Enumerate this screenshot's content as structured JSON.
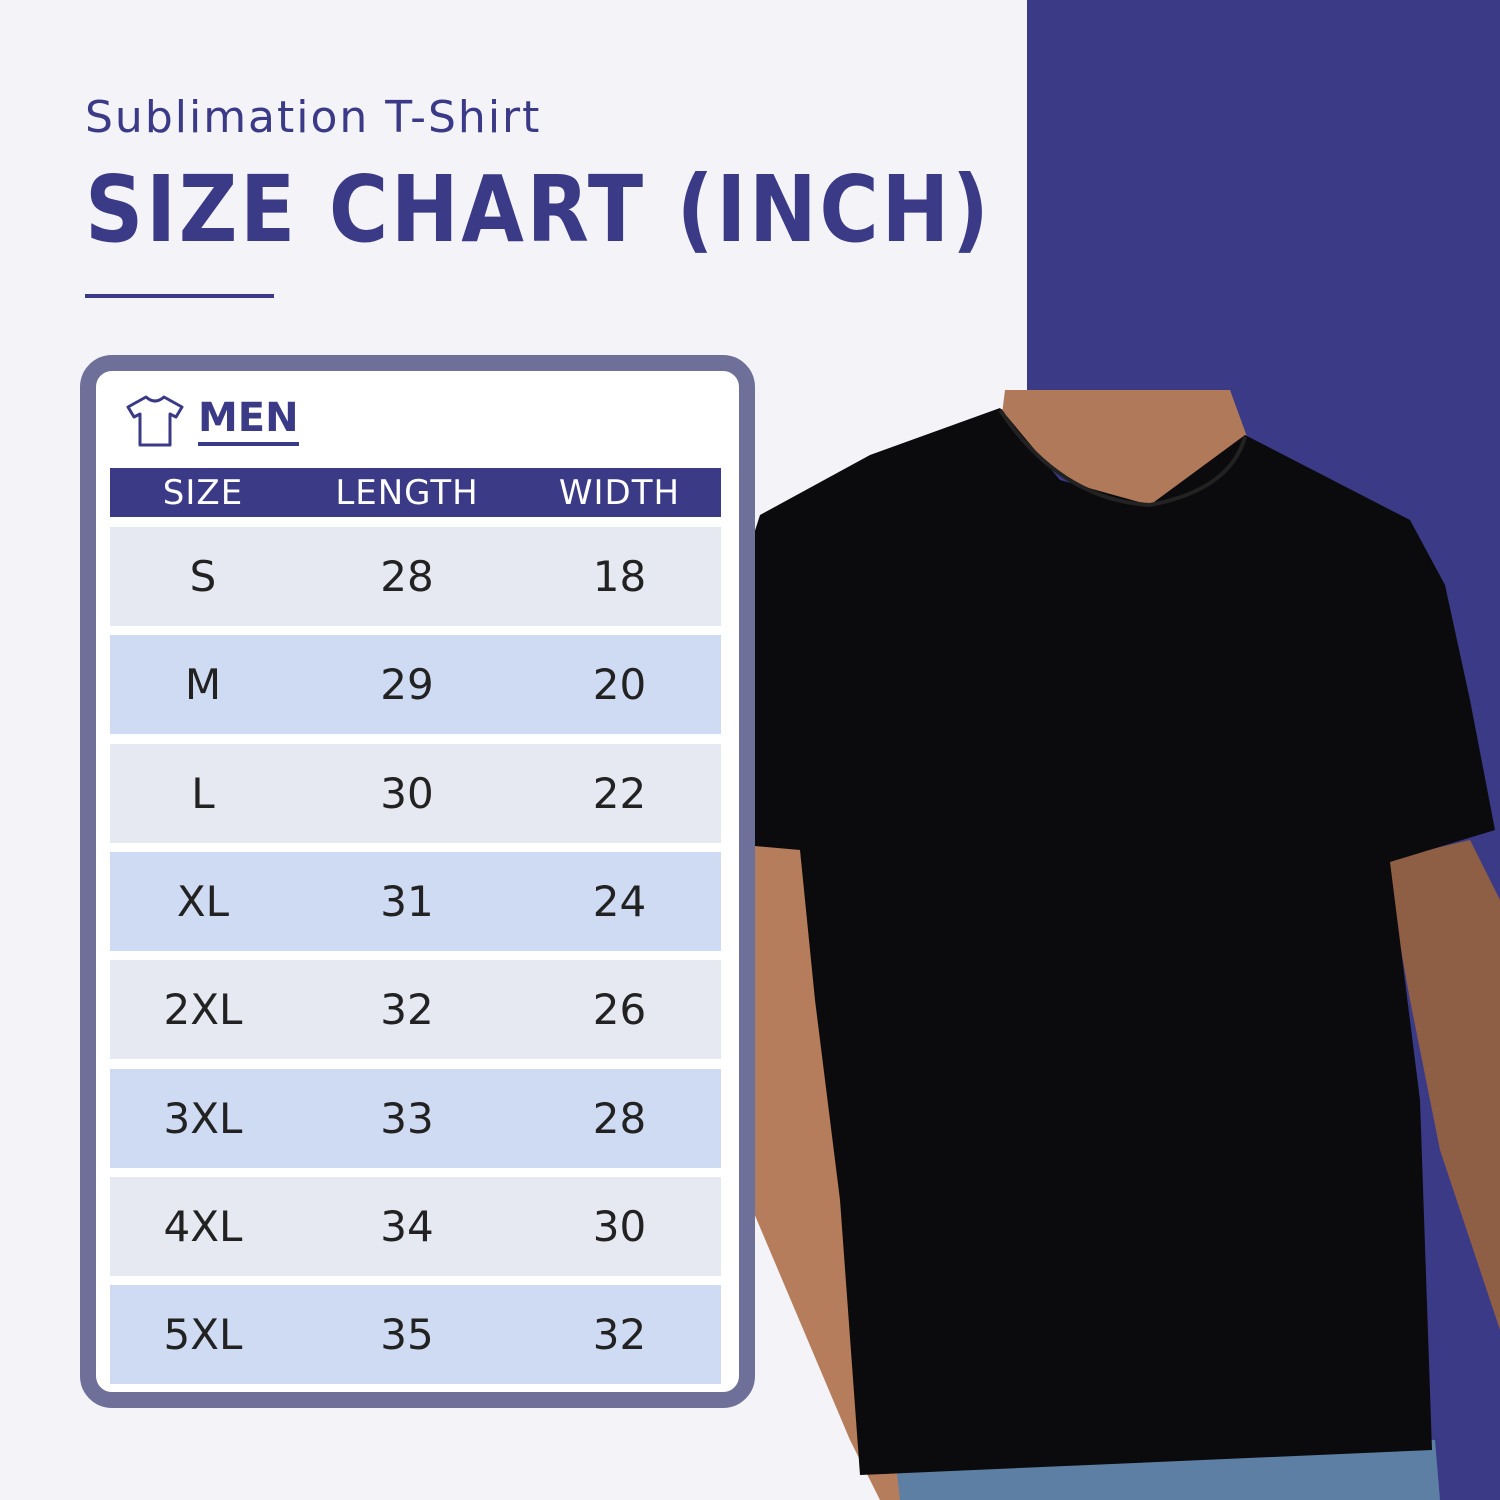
{
  "header": {
    "subtitle": "Sublimation T-Shirt",
    "title": "SIZE CHART (INCH)"
  },
  "card": {
    "icon": "tshirt-icon",
    "label": "MEN",
    "columns": [
      "SIZE",
      "LENGTH",
      "WIDTH"
    ],
    "rows": [
      [
        "S",
        "28",
        "18"
      ],
      [
        "M",
        "29",
        "20"
      ],
      [
        "L",
        "30",
        "22"
      ],
      [
        "XL",
        "31",
        "24"
      ],
      [
        "2XL",
        "32",
        "26"
      ],
      [
        "3XL",
        "33",
        "28"
      ],
      [
        "4XL",
        "34",
        "30"
      ],
      [
        "5XL",
        "35",
        "32"
      ]
    ]
  },
  "colors": {
    "accent": "#3b3a87",
    "card_border": "#6f7099",
    "row_light": "#e6e8f2",
    "row_blue": "#cfdaf3",
    "background": "#f3f3f8"
  }
}
